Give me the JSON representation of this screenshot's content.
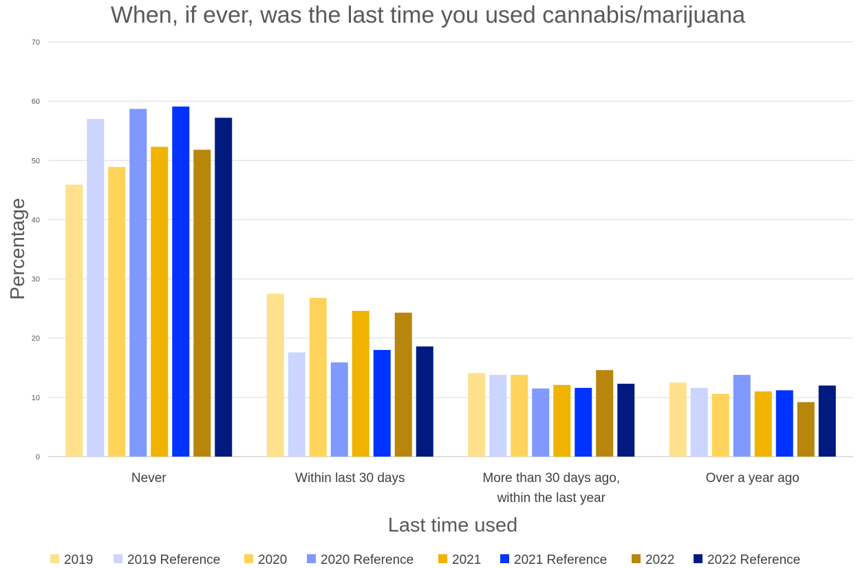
{
  "chart_data": {
    "type": "bar",
    "title": "When, if ever, was the last time you used cannabis/marijuana",
    "xlabel": "Last time used",
    "ylabel": "Percentage",
    "ylim": [
      0,
      70
    ],
    "yticks": [
      0,
      10,
      20,
      30,
      40,
      50,
      60,
      70
    ],
    "grid": true,
    "legend_position": "bottom",
    "categories": [
      [
        "Never"
      ],
      [
        "Within last 30 days"
      ],
      [
        "More than 30 days ago,",
        "within the last year"
      ],
      [
        "Over a year ago"
      ]
    ],
    "series": [
      {
        "name": "2019",
        "color": "#FFE08C",
        "values": [
          45.9,
          27.5,
          14.1,
          12.5
        ]
      },
      {
        "name": "2019 Reference",
        "color": "#CCD5FF",
        "values": [
          57.0,
          17.6,
          13.8,
          11.6
        ]
      },
      {
        "name": "2020",
        "color": "#FFD35A",
        "values": [
          48.9,
          26.8,
          13.8,
          10.6
        ]
      },
      {
        "name": "2020 Reference",
        "color": "#7F99FF",
        "values": [
          58.7,
          15.9,
          11.5,
          13.8
        ]
      },
      {
        "name": "2021",
        "color": "#F0B300",
        "values": [
          52.3,
          24.6,
          12.1,
          11.0
        ]
      },
      {
        "name": "2021 Reference",
        "color": "#0033FF",
        "values": [
          59.1,
          18.0,
          11.6,
          11.2
        ]
      },
      {
        "name": "2022",
        "color": "#B8860B",
        "values": [
          51.8,
          24.3,
          14.6,
          9.2
        ]
      },
      {
        "name": "2022 Reference",
        "color": "#001A80",
        "values": [
          57.2,
          18.6,
          12.3,
          12.0
        ]
      }
    ]
  }
}
